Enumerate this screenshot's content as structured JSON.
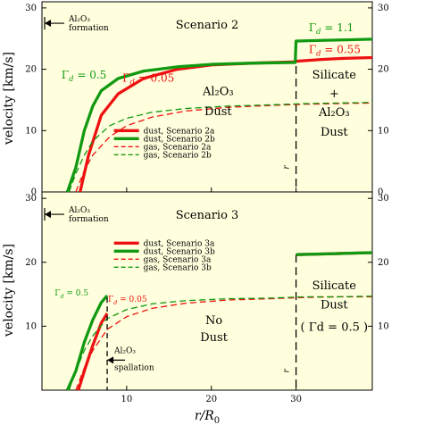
{
  "chart_data": [
    {
      "type": "line",
      "panel": "top",
      "title": "Scenario 2",
      "xlim": [
        0,
        39
      ],
      "ylim": [
        0,
        31
      ],
      "yticks": [
        0,
        10,
        20,
        30
      ],
      "xticks": [
        10,
        20,
        30
      ],
      "ylabel": "velocity [km/s]",
      "grid": false,
      "legend_placement": "center-left",
      "series": [
        {
          "name": "dust, Scenario 2a",
          "color": "#ee1111",
          "style": "solid",
          "x": [
            4.5,
            5.5,
            7,
            9,
            12,
            16,
            20,
            25,
            29.9,
            30,
            33,
            36,
            39
          ],
          "y": [
            0,
            6,
            12.5,
            16,
            18.5,
            20,
            20.7,
            21,
            21.2,
            21.3,
            21.6,
            21.8,
            21.9
          ]
        },
        {
          "name": "dust, Scenario 2b",
          "color": "#119911",
          "style": "solid",
          "x": [
            3,
            4,
            5,
            6,
            7,
            9,
            12,
            16,
            20,
            25,
            29.9,
            30,
            33,
            36,
            39
          ],
          "y": [
            0,
            4,
            10,
            14,
            16.5,
            18.5,
            19.7,
            20.4,
            20.8,
            21,
            21.1,
            24.6,
            24.7,
            24.8,
            24.9
          ]
        },
        {
          "name": "gas, Scenario 2a",
          "color": "#ee1111",
          "style": "dashed",
          "x": [
            4,
            5,
            6,
            8,
            10,
            13,
            17,
            22,
            27,
            31,
            35,
            39
          ],
          "y": [
            0,
            3.5,
            6,
            9,
            10.8,
            12.2,
            13.2,
            13.8,
            14.1,
            14.3,
            14.4,
            14.5
          ]
        },
        {
          "name": "gas, Scenario 2b",
          "color": "#119911",
          "style": "dashed",
          "x": [
            3.2,
            4,
            5,
            6,
            8,
            10,
            13,
            17,
            22,
            27,
            31,
            35,
            39
          ],
          "y": [
            0,
            3,
            6,
            8.3,
            10.8,
            12,
            13,
            13.6,
            14,
            14.2,
            14.4,
            14.5,
            14.6
          ]
        }
      ],
      "annotations": {
        "al2o3_formation": "Al₂O₃ formation",
        "gamma_b": "Γd = 0.5",
        "gamma_a": "Γd = 0.05",
        "gamma_b_right": "Γd = 1.1",
        "gamma_a_right": "Γd = 0.55",
        "region_left": [
          "Al₂O₃",
          "Dust"
        ],
        "region_right": [
          "Silicate",
          "+",
          "Al₂O₃",
          "Dust"
        ],
        "rd_label": "rd",
        "rd_value": 30
      }
    },
    {
      "type": "line",
      "panel": "bottom",
      "title": "Scenario 3",
      "xlim": [
        0,
        39
      ],
      "ylim": [
        0,
        31
      ],
      "yticks": [
        10,
        20,
        30
      ],
      "xticks": [
        10,
        20,
        30
      ],
      "xlabel": "r/R0",
      "ylabel": "velocity [km/s]",
      "grid": false,
      "legend_placement": "upper-center",
      "series": [
        {
          "name": "dust, Scenario 3a",
          "color": "#ee1111",
          "style": "solid",
          "x": [
            4.3,
            5,
            6,
            7,
            7.7
          ],
          "y": [
            0,
            3,
            7,
            10.5,
            12
          ],
          "x2": [
            30,
            33,
            36,
            39
          ],
          "y2": [
            21.2,
            21.3,
            21.4,
            21.5
          ]
        },
        {
          "name": "dust, Scenario 3b",
          "color": "#119911",
          "style": "solid",
          "x": [
            3,
            4,
            5,
            6,
            7,
            7.7
          ],
          "y": [
            0,
            3,
            7.5,
            11,
            13.7,
            14.8
          ],
          "x2": [
            30,
            33,
            36,
            39
          ],
          "y2": [
            21.2,
            21.3,
            21.4,
            21.5
          ]
        },
        {
          "name": "gas, Scenario 3a",
          "color": "#ee1111",
          "style": "dashed",
          "x": [
            4,
            5,
            6,
            7.7,
            10,
            13,
            17,
            22,
            27,
            31,
            35,
            39
          ],
          "y": [
            0,
            3.5,
            6.2,
            9.5,
            11.5,
            12.8,
            13.6,
            14.1,
            14.3,
            14.5,
            14.6,
            14.6
          ]
        },
        {
          "name": "gas, Scenario 3b",
          "color": "#119911",
          "style": "dashed",
          "x": [
            3.2,
            4,
            5,
            6,
            7.7,
            10,
            13,
            17,
            22,
            27,
            31,
            35,
            39
          ],
          "y": [
            0,
            3,
            6.2,
            8.5,
            11.2,
            12.6,
            13.5,
            14,
            14.3,
            14.4,
            14.6,
            14.6,
            14.7
          ]
        }
      ],
      "annotations": {
        "al2o3_formation": "Al₂O₃ formation",
        "al2o3_spallation": "Al₂O₃ spallation",
        "spallation_x": 7.7,
        "gamma_b": "Γd = 0.5",
        "gamma_a": "Γd = 0.05",
        "region_left": [
          "No",
          "Dust"
        ],
        "region_right": [
          "Silicate",
          "Dust",
          "( Γd = 0.5 )"
        ],
        "rd_label": "rd",
        "rd_value": 30
      }
    }
  ]
}
